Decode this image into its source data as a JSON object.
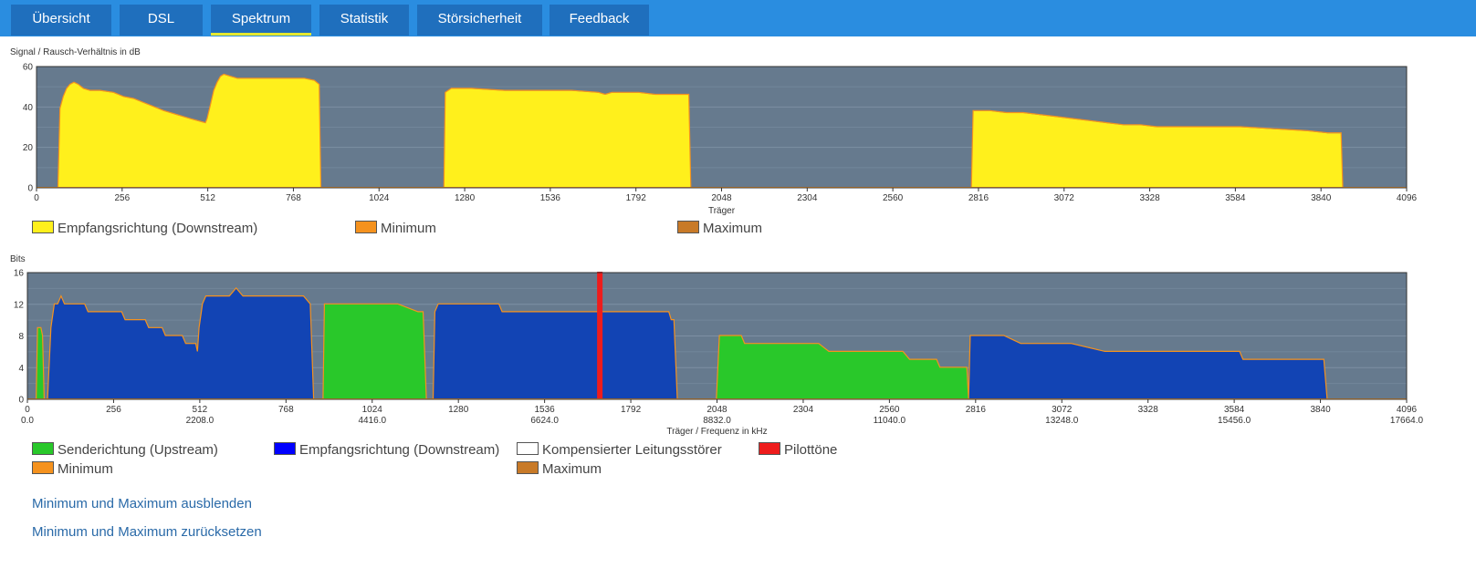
{
  "tabs": [
    {
      "label": "Übersicht",
      "active": false
    },
    {
      "label": "DSL",
      "active": false
    },
    {
      "label": "Spektrum",
      "active": true
    },
    {
      "label": "Statistik",
      "active": false
    },
    {
      "label": "Störsicherheit",
      "active": false
    },
    {
      "label": "Feedback",
      "active": false
    }
  ],
  "colors": {
    "accent": "#2a8de0",
    "tab_bg": "#1f6fbd",
    "tab_active_underline": "#e6e830",
    "plot_bg": "#667a8e",
    "downstream_snr": "#fff01c",
    "minimum": "#f5921e",
    "maximum": "#c87a28",
    "upstream": "#29c82a",
    "downstream_bits": "#1244b4",
    "pilot": "#ee1c1c",
    "link": "#2a6aa8"
  },
  "chart_data": [
    {
      "type": "area",
      "title": "Signal / Rausch-Verhältnis in dB",
      "xlabel": "Träger",
      "ylabel": "",
      "xlim": [
        0,
        4096
      ],
      "ylim": [
        0,
        60
      ],
      "xticks": [
        "0",
        "256",
        "512",
        "768",
        "1024",
        "1280",
        "1536",
        "1792",
        "2048",
        "2304",
        "2560",
        "2816",
        "3072",
        "3328",
        "3584",
        "3840",
        "4096"
      ],
      "yticks": [
        "0",
        "20",
        "40",
        "60"
      ],
      "grid": true,
      "legend": [
        {
          "label": "Empfangsrichtung (Downstream)",
          "color": "#fff01c"
        },
        {
          "label": "Minimum",
          "color": "#f5921e"
        },
        {
          "label": "Maximum",
          "color": "#c87a28"
        }
      ],
      "series": [
        {
          "role": "downstream",
          "segments": [
            [
              [
                64,
                0
              ],
              [
                70,
                39
              ],
              [
                80,
                45
              ],
              [
                90,
                49
              ],
              [
                100,
                51
              ],
              [
                112,
                52
              ],
              [
                125,
                51
              ],
              [
                140,
                49
              ],
              [
                160,
                48
              ],
              [
                190,
                48
              ],
              [
                230,
                47
              ],
              [
                260,
                45
              ],
              [
                290,
                44
              ],
              [
                320,
                42
              ],
              [
                350,
                40
              ],
              [
                380,
                38
              ],
              [
                420,
                36
              ],
              [
                460,
                34
              ],
              [
                505,
                32
              ],
              [
                510,
                34
              ],
              [
                520,
                41
              ],
              [
                530,
                48
              ],
              [
                540,
                52
              ],
              [
                550,
                55
              ],
              [
                560,
                56
              ],
              [
                580,
                55
              ],
              [
                600,
                54
              ],
              [
                650,
                54
              ],
              [
                700,
                54
              ],
              [
                750,
                54
              ],
              [
                800,
                54
              ],
              [
                830,
                53
              ],
              [
                845,
                51
              ],
              [
                850,
                0
              ]
            ],
            [
              [
                1218,
                0
              ],
              [
                1222,
                47
              ],
              [
                1240,
                49
              ],
              [
                1260,
                49
              ],
              [
                1300,
                49
              ],
              [
                1400,
                48
              ],
              [
                1500,
                48
              ],
              [
                1600,
                48
              ],
              [
                1680,
                47
              ],
              [
                1700,
                46
              ],
              [
                1720,
                47
              ],
              [
                1800,
                47
              ],
              [
                1850,
                46
              ],
              [
                1950,
                46
              ],
              [
                1956,
                0
              ]
            ],
            [
              [
                2795,
                0
              ],
              [
                2800,
                38
              ],
              [
                2850,
                38
              ],
              [
                2900,
                37
              ],
              [
                2950,
                37
              ],
              [
                3000,
                36
              ],
              [
                3050,
                35
              ],
              [
                3100,
                34
              ],
              [
                3150,
                33
              ],
              [
                3200,
                32
              ],
              [
                3250,
                31
              ],
              [
                3300,
                31
              ],
              [
                3350,
                30
              ],
              [
                3500,
                30
              ],
              [
                3600,
                30
              ],
              [
                3700,
                29
              ],
              [
                3800,
                28
              ],
              [
                3860,
                27
              ],
              [
                3900,
                27
              ],
              [
                3905,
                0
              ]
            ]
          ]
        }
      ]
    },
    {
      "type": "area",
      "title": "Bits",
      "xlabel": "Träger / Frequenz in kHz",
      "ylabel": "",
      "xlim": [
        0,
        4096
      ],
      "ylim": [
        0,
        16
      ],
      "xticks": [
        "0",
        "256",
        "512",
        "768",
        "1024",
        "1280",
        "1536",
        "1792",
        "2048",
        "2304",
        "2560",
        "2816",
        "3072",
        "3328",
        "3584",
        "3840",
        "4096"
      ],
      "freq_ticks": [
        "0.0",
        "2208.0",
        "4416.0",
        "6624.0",
        "8832.0",
        "11040.0",
        "13248.0",
        "15456.0",
        "17664.0"
      ],
      "yticks": [
        "0",
        "4",
        "8",
        "12",
        "16"
      ],
      "grid": true,
      "legend": [
        {
          "label": "Senderichtung (Upstream)",
          "color": "#29c82a"
        },
        {
          "label": "Empfangsrichtung (Downstream)",
          "color": "#0000ff"
        },
        {
          "label": "Kompensierter Leitungsstörer",
          "color": "#ffffff"
        },
        {
          "label": "Pilottöne",
          "color": "#ee1c1c"
        },
        {
          "label": "Minimum",
          "color": "#f5921e"
        },
        {
          "label": "Maximum",
          "color": "#c87a28"
        }
      ],
      "series": [
        {
          "role": "upstream",
          "segments": [
            [
              [
                26,
                0
              ],
              [
                30,
                9
              ],
              [
                40,
                9
              ],
              [
                45,
                8
              ],
              [
                50,
                0
              ]
            ],
            [
              [
                878,
                0
              ],
              [
                882,
                12
              ],
              [
                1000,
                12
              ],
              [
                1100,
                12
              ],
              [
                1160,
                11
              ],
              [
                1175,
                11
              ],
              [
                1185,
                0
              ]
            ],
            [
              [
                2046,
                0
              ],
              [
                2055,
                8
              ],
              [
                2120,
                8
              ],
              [
                2130,
                7
              ],
              [
                2200,
                7
              ],
              [
                2350,
                7
              ],
              [
                2380,
                6
              ],
              [
                2600,
                6
              ],
              [
                2620,
                5
              ],
              [
                2700,
                5
              ],
              [
                2710,
                4
              ],
              [
                2790,
                4
              ],
              [
                2795,
                0
              ]
            ]
          ]
        },
        {
          "role": "downstream",
          "segments": [
            [
              [
                60,
                0
              ],
              [
                70,
                9
              ],
              [
                80,
                12
              ],
              [
                90,
                12
              ],
              [
                100,
                13
              ],
              [
                110,
                12
              ],
              [
                170,
                12
              ],
              [
                180,
                11
              ],
              [
                280,
                11
              ],
              [
                290,
                10
              ],
              [
                350,
                10
              ],
              [
                360,
                9
              ],
              [
                400,
                9
              ],
              [
                410,
                8
              ],
              [
                460,
                8
              ],
              [
                470,
                7
              ],
              [
                500,
                7
              ],
              [
                505,
                6
              ],
              [
                510,
                9
              ],
              [
                520,
                12
              ],
              [
                530,
                13
              ],
              [
                600,
                13
              ],
              [
                620,
                14
              ],
              [
                640,
                13
              ],
              [
                700,
                13
              ],
              [
                760,
                13
              ],
              [
                820,
                13
              ],
              [
                840,
                12
              ],
              [
                850,
                0
              ]
            ],
            [
              [
                1205,
                0
              ],
              [
                1210,
                11
              ],
              [
                1220,
                12
              ],
              [
                1300,
                12
              ],
              [
                1400,
                12
              ],
              [
                1410,
                11
              ],
              [
                1500,
                11
              ],
              [
                1600,
                11
              ],
              [
                1800,
                11
              ],
              [
                1905,
                11
              ],
              [
                1912,
                10
              ],
              [
                1920,
                10
              ],
              [
                1930,
                0
              ]
            ],
            [
              [
                2795,
                0
              ],
              [
                2800,
                8
              ],
              [
                2900,
                8
              ],
              [
                2950,
                7
              ],
              [
                3100,
                7
              ],
              [
                3200,
                6
              ],
              [
                3400,
                6
              ],
              [
                3600,
                6
              ],
              [
                3610,
                5
              ],
              [
                3700,
                5
              ],
              [
                3850,
                5
              ],
              [
                3860,
                0
              ]
            ]
          ]
        },
        {
          "role": "pilot",
          "x": 1700
        }
      ]
    }
  ],
  "links": {
    "hide_minmax": "Minimum und Maximum ausblenden",
    "reset_minmax": "Minimum und Maximum zurücksetzen"
  }
}
